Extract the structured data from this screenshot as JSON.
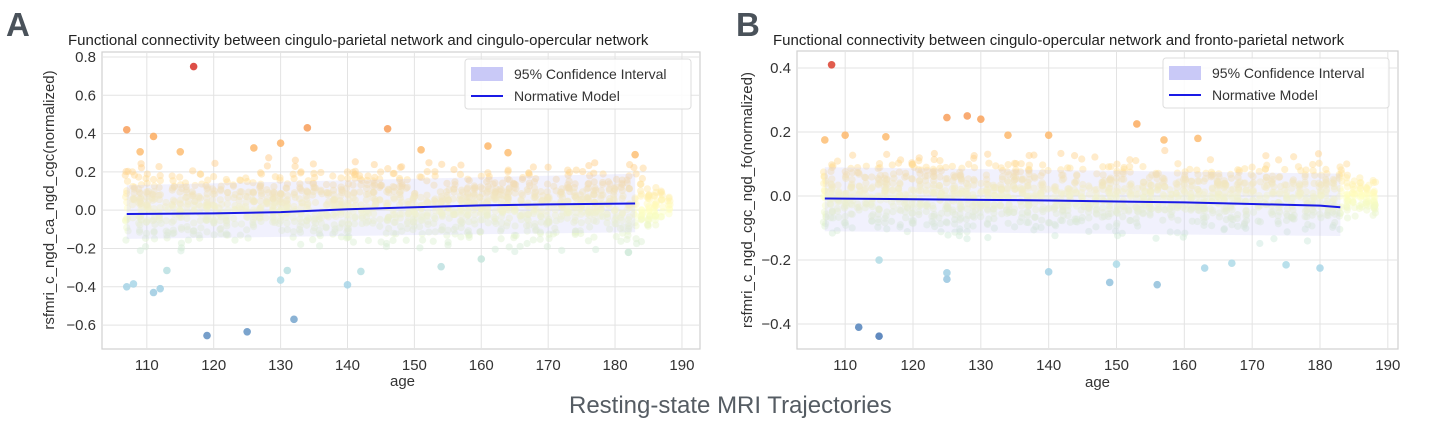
{
  "figure": {
    "suptitle": "Resting-state MRI Trajectories"
  },
  "chart_data": [
    {
      "type": "scatter",
      "panel_label": "A",
      "title": "Functional connectivity between cingulo-parietal network and cingulo-opercular network",
      "xlabel": "age",
      "ylabel": "rsfmri_c_ngd_ca_ngd_cgc(normalized)",
      "xlim": [
        103.3,
        192.7
      ],
      "ylim": [
        -0.725,
        0.826
      ],
      "xticks": [
        110,
        120,
        130,
        140,
        150,
        160,
        170,
        180,
        190
      ],
      "yticks": [
        0.8,
        0.6,
        0.4,
        0.2,
        0.0,
        -0.2,
        -0.4,
        -0.6
      ],
      "ytick_labels": [
        "0.8",
        "0.6",
        "0.4",
        "0.2",
        "0.0",
        "−0.2",
        "−0.4",
        "−0.6"
      ],
      "grid": true,
      "colormap": "RdYlBu_r",
      "legend": {
        "position": "top-right",
        "entries": [
          "95% Confidence Interval",
          "Normative Model"
        ]
      },
      "colors": {
        "ci": "#c9c9f7",
        "model": "#1a1ae6"
      },
      "dense_cloud": {
        "age_range": [
          107,
          188
        ],
        "y_range": [
          -0.25,
          0.3
        ]
      },
      "points": [
        [
          117,
          0.75
        ],
        [
          107,
          0.42
        ],
        [
          111,
          0.385
        ],
        [
          134,
          0.43
        ],
        [
          146,
          0.425
        ],
        [
          130,
          0.35
        ],
        [
          161,
          0.335
        ],
        [
          109,
          0.305
        ],
        [
          115,
          0.305
        ],
        [
          126,
          0.325
        ],
        [
          151,
          0.315
        ],
        [
          164,
          0.3
        ],
        [
          183,
          0.29
        ],
        [
          119,
          -0.655
        ],
        [
          125,
          -0.635
        ],
        [
          132,
          -0.57
        ],
        [
          111,
          -0.43
        ],
        [
          112,
          -0.41
        ],
        [
          107,
          -0.4
        ],
        [
          108,
          -0.385
        ],
        [
          140,
          -0.39
        ],
        [
          130,
          -0.365
        ],
        [
          131,
          -0.315
        ],
        [
          142,
          -0.32
        ],
        [
          154,
          -0.295
        ],
        [
          113,
          -0.315
        ],
        [
          160,
          -0.255
        ],
        [
          182,
          -0.22
        ]
      ],
      "normative_model": {
        "age": [
          107,
          120,
          130,
          140,
          150,
          160,
          170,
          183
        ],
        "value": [
          -0.02,
          -0.017,
          -0.01,
          0.005,
          0.015,
          0.025,
          0.03,
          0.035
        ]
      },
      "ci_95": {
        "age": [
          107,
          183
        ],
        "lower": [
          -0.15,
          -0.115
        ],
        "upper": [
          0.13,
          0.19
        ]
      }
    },
    {
      "type": "scatter",
      "panel_label": "B",
      "title": "Functional connectivity between cingulo-opercular network and fronto-parietal network",
      "xlabel": "age",
      "ylabel": "rsfmri_c_ngd_cgc_ngd_fo(normalized)",
      "xlim": [
        102.9,
        191.5
      ],
      "ylim": [
        -0.478,
        0.453
      ],
      "xticks": [
        110,
        120,
        130,
        140,
        150,
        160,
        170,
        180,
        190
      ],
      "yticks": [
        0.4,
        0.2,
        0.0,
        -0.2,
        -0.4
      ],
      "ytick_labels": [
        "0.4",
        "0.2",
        "0.0",
        "−0.2",
        "−0.4"
      ],
      "grid": true,
      "colormap": "RdYlBu_r",
      "legend": {
        "position": "top-right",
        "entries": [
          "95% Confidence Interval",
          "Normative Model"
        ]
      },
      "colors": {
        "ci": "#c9c9f7",
        "model": "#1a1ae6"
      },
      "dense_cloud": {
        "age_range": [
          107,
          188
        ],
        "y_range": [
          -0.16,
          0.16
        ]
      },
      "points": [
        [
          108,
          0.41
        ],
        [
          125,
          0.245
        ],
        [
          128,
          0.25
        ],
        [
          130,
          0.24
        ],
        [
          153,
          0.225
        ],
        [
          110,
          0.19
        ],
        [
          116,
          0.185
        ],
        [
          134,
          0.19
        ],
        [
          140,
          0.19
        ],
        [
          162,
          0.18
        ],
        [
          107,
          0.175
        ],
        [
          157,
          0.175
        ],
        [
          112,
          -0.41
        ],
        [
          115,
          -0.438
        ],
        [
          125,
          -0.26
        ],
        [
          125,
          -0.24
        ],
        [
          149,
          -0.27
        ],
        [
          156,
          -0.277
        ],
        [
          140,
          -0.237
        ],
        [
          180,
          -0.225
        ],
        [
          163,
          -0.225
        ],
        [
          150,
          -0.213
        ],
        [
          167,
          -0.21
        ],
        [
          115,
          -0.2
        ],
        [
          175,
          -0.215
        ]
      ],
      "normative_model": {
        "age": [
          107,
          120,
          130,
          140,
          150,
          160,
          170,
          180,
          183
        ],
        "value": [
          -0.008,
          -0.01,
          -0.012,
          -0.014,
          -0.017,
          -0.02,
          -0.025,
          -0.03,
          -0.035
        ]
      },
      "ci_95": {
        "age": [
          107,
          183
        ],
        "lower": [
          -0.11,
          -0.125
        ],
        "upper": [
          0.09,
          0.07
        ]
      }
    }
  ]
}
